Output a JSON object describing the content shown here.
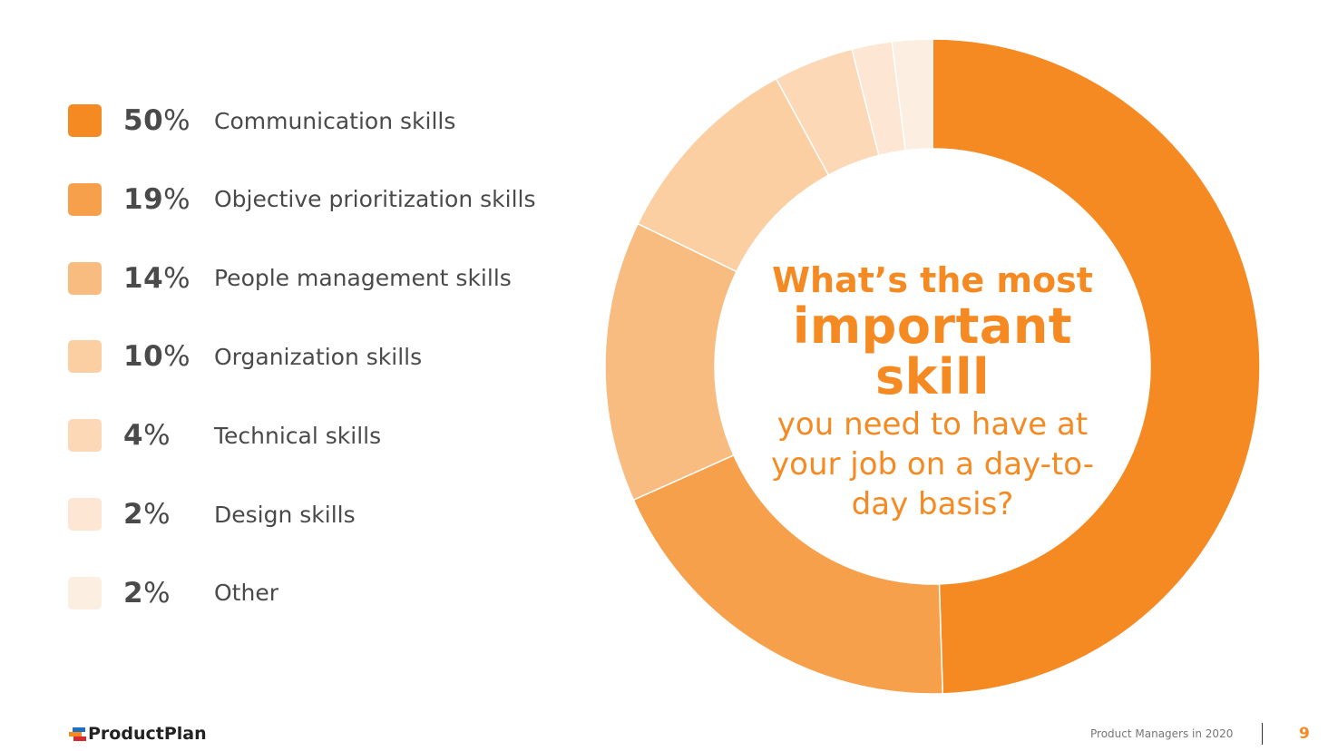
{
  "chart_data": {
    "type": "pie",
    "variant": "donut",
    "title": "",
    "center_question": {
      "line1": "What’s the most",
      "line2": "important skill",
      "line3": "you need to have at your job on a day-to-day basis?"
    },
    "categories": [
      "Communication skills",
      "Objective prioritization skills",
      "People management skills",
      "Organization skills",
      "Technical skills",
      "Design skills",
      "Other"
    ],
    "values": [
      50,
      19,
      14,
      10,
      4,
      2,
      2
    ],
    "labels": [
      "50",
      "19",
      "14",
      "10",
      "4",
      "2",
      "2"
    ],
    "percent_symbol": "%",
    "colors": [
      "#F58A22",
      "#F6A04C",
      "#F8BB80",
      "#FBCFA2",
      "#FCD8B6",
      "#FDE6D3",
      "#FDEEE2"
    ],
    "legend_position": "left",
    "start_angle": "top, clockwise"
  },
  "footer": {
    "logo": "ProductPlan",
    "logo_colors": [
      "#1E6FC0",
      "#F58A22",
      "#D9272E"
    ],
    "report_title": "Product Managers in 2020",
    "page_number": "9"
  },
  "accent_color": "#F58A22"
}
